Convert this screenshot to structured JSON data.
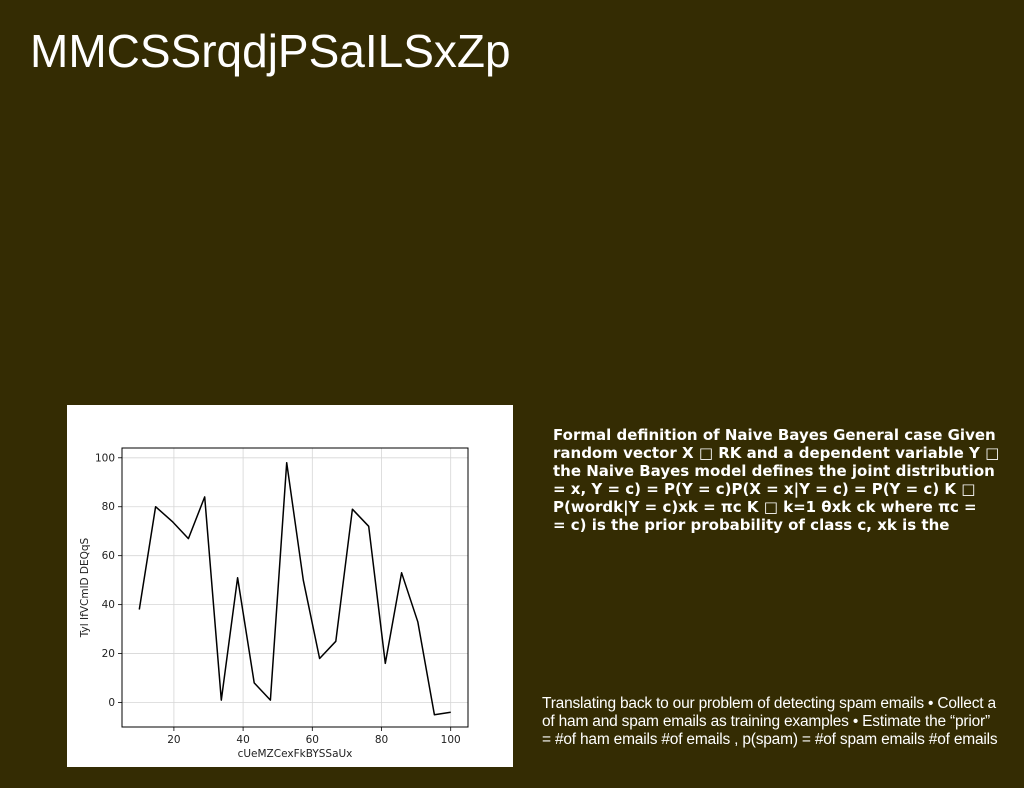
{
  "slide": {
    "title": "MMCSSrqdjPSaILSxZp",
    "background": "#342c03",
    "text_color": "#ffffff",
    "bold_lines": [
      "Formal definition of Naive Bayes General case Given",
      "random vector X □ RK and a dependent variable Y □",
      "the Naive Bayes model defines the joint distribution",
      "= x, Y = c) = P(Y = c)P(X = x|Y = c) = P(Y = c) K □",
      "P(wordk|Y = c)xk = πc K □ k=1 θxk ck where πc =",
      "= c) is the prior probability of class c, xk is the"
    ],
    "plain_lines": [
      "Translating back to our problem of detecting spam emails • Collect a",
      "of ham and spam emails as training examples • Estimate the “prior”",
      "= #of ham emails #of emails , p(spam) = #of spam emails #of emails"
    ]
  },
  "chart_data": {
    "type": "line",
    "title": "",
    "xlabel": "cUeMZCexFkBYSSaUx",
    "ylabel": "Tyl IfVCmlD DEQqS",
    "xlim": [
      5,
      105
    ],
    "ylim": [
      -10,
      104
    ],
    "xticks": [
      20,
      40,
      60,
      80,
      100
    ],
    "yticks": [
      0,
      20,
      40,
      60,
      80,
      100
    ],
    "grid": true,
    "line_color": "#000000",
    "x": [
      10,
      14.7,
      19.5,
      24.2,
      28.9,
      33.7,
      38.4,
      43.2,
      47.9,
      52.6,
      57.4,
      62.1,
      66.8,
      71.6,
      76.3,
      81.1,
      85.8,
      90.5,
      95.3,
      100
    ],
    "y": [
      38,
      80,
      74,
      67,
      84,
      1,
      51,
      8,
      1,
      98,
      50,
      18,
      25,
      79,
      72,
      16,
      53,
      33,
      -5,
      -4
    ]
  }
}
